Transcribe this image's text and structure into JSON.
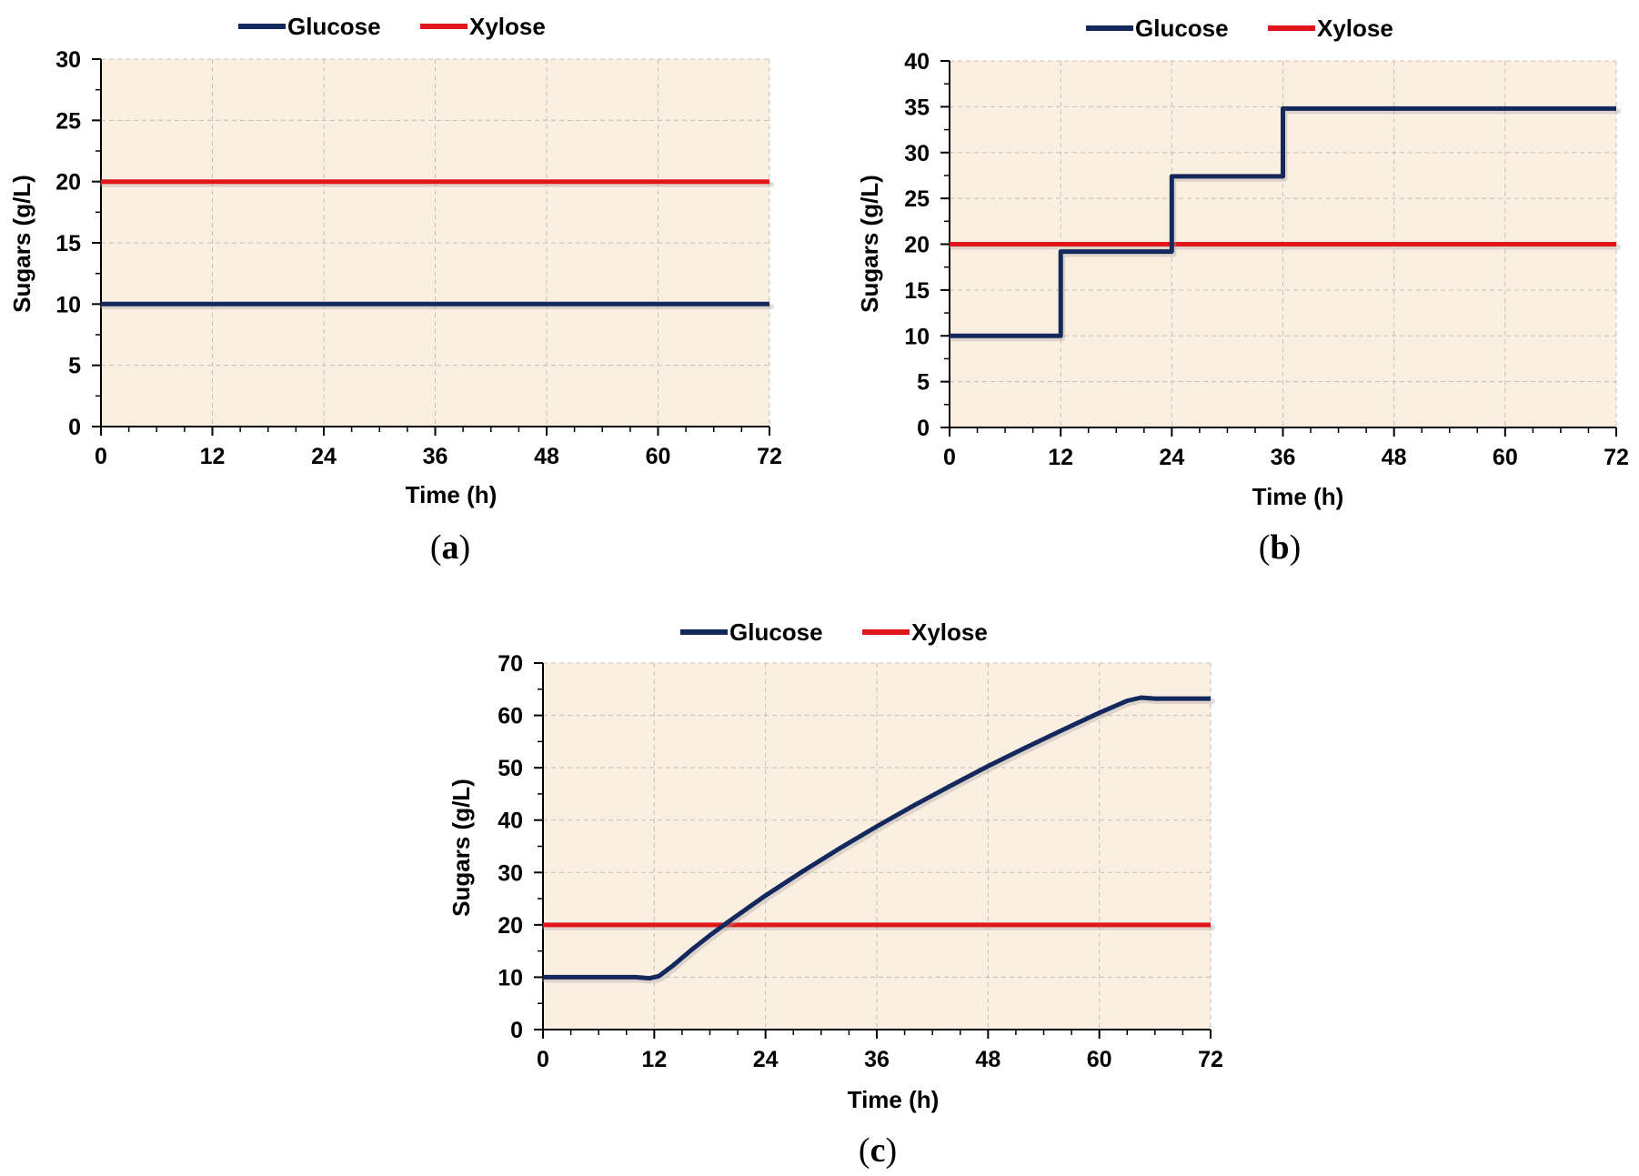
{
  "chart_data": [
    {
      "type": "line",
      "caption_letter": "a",
      "xlabel": "Time (h)",
      "ylabel": "Sugars (g/L)",
      "xlim": [
        0,
        72
      ],
      "ylim": [
        0,
        30
      ],
      "xticks": [
        0,
        12,
        24,
        36,
        48,
        60,
        72
      ],
      "yticks": [
        0,
        5,
        10,
        15,
        20,
        25,
        30
      ],
      "legend_position": "top-center",
      "grid": true,
      "series": [
        {
          "name": "Glucose",
          "color": "#13295e",
          "x": [
            0,
            72
          ],
          "y": [
            10,
            10
          ]
        },
        {
          "name": "Xylose",
          "color": "#e0161b",
          "x": [
            0,
            72
          ],
          "y": [
            20,
            20
          ]
        }
      ]
    },
    {
      "type": "line",
      "caption_letter": "b",
      "xlabel": "Time (h)",
      "ylabel": "Sugars (g/L)",
      "xlim": [
        0,
        72
      ],
      "ylim": [
        0,
        40
      ],
      "xticks": [
        0,
        12,
        24,
        36,
        48,
        60,
        72
      ],
      "yticks": [
        0,
        5,
        10,
        15,
        20,
        25,
        30,
        35,
        40
      ],
      "legend_position": "top-center",
      "grid": true,
      "series": [
        {
          "name": "Glucose",
          "color": "#13295e",
          "x": [
            0,
            12,
            12,
            24,
            24,
            36,
            36,
            72
          ],
          "y": [
            10,
            10,
            19.2,
            19.2,
            27.4,
            27.4,
            34.8,
            34.8
          ]
        },
        {
          "name": "Xylose",
          "color": "#e0161b",
          "x": [
            0,
            72
          ],
          "y": [
            20,
            20
          ]
        }
      ]
    },
    {
      "type": "line",
      "caption_letter": "c",
      "xlabel": "Time (h)",
      "ylabel": "Sugars (g/L)",
      "xlim": [
        0,
        72
      ],
      "ylim": [
        0,
        70
      ],
      "xticks": [
        0,
        12,
        24,
        36,
        48,
        60,
        72
      ],
      "yticks": [
        0,
        10,
        20,
        30,
        40,
        50,
        60,
        70
      ],
      "legend_position": "top-center",
      "grid": true,
      "series": [
        {
          "name": "Glucose",
          "color": "#13295e",
          "x": [
            0,
            10,
            11.5,
            12.5,
            14,
            16,
            18,
            20,
            24,
            28,
            32,
            36,
            40,
            44,
            48,
            52,
            56,
            60,
            63,
            64.5,
            66,
            72
          ],
          "y": [
            10,
            10,
            9.8,
            10.2,
            12.2,
            15.2,
            18,
            20.6,
            25.6,
            30.2,
            34.6,
            38.8,
            42.8,
            46.6,
            50.3,
            53.8,
            57.2,
            60.5,
            62.8,
            63.4,
            63.2,
            63.2
          ]
        },
        {
          "name": "Xylose",
          "color": "#e0161b",
          "x": [
            0,
            72
          ],
          "y": [
            20,
            20
          ]
        }
      ]
    }
  ]
}
